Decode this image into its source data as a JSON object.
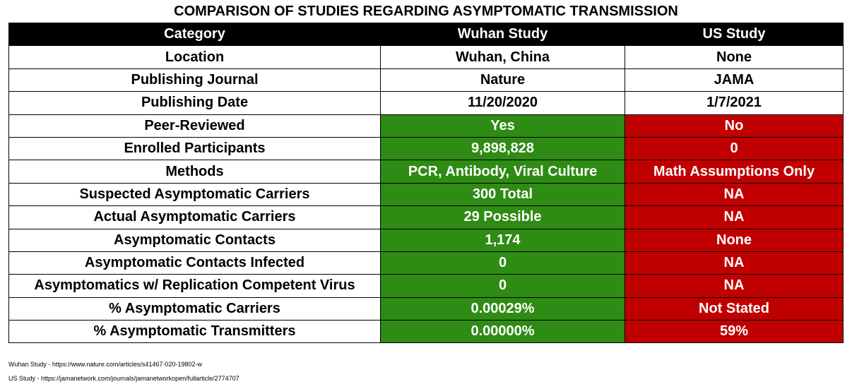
{
  "title": "COMPARISON OF STUDIES REGARDING ASYMPTOMATIC TRANSMISSION",
  "colors": {
    "good": "#2e8b13",
    "bad": "#c00000",
    "header_bg": "#000000"
  },
  "headers": [
    "Category",
    "Wuhan Study",
    "US Study"
  ],
  "rows": [
    {
      "category": "Location",
      "wuhan": "Wuhan, China",
      "us": "None",
      "highlight": false
    },
    {
      "category": "Publishing Journal",
      "wuhan": "Nature",
      "us": "JAMA",
      "highlight": false
    },
    {
      "category": "Publishing Date",
      "wuhan": "11/20/2020",
      "us": "1/7/2021",
      "highlight": false
    },
    {
      "category": "Peer-Reviewed",
      "wuhan": "Yes",
      "us": "No",
      "highlight": true
    },
    {
      "category": "Enrolled Participants",
      "wuhan": "9,898,828",
      "us": "0",
      "highlight": true
    },
    {
      "category": "Methods",
      "wuhan": "PCR, Antibody, Viral Culture",
      "us": "Math Assumptions Only",
      "highlight": true
    },
    {
      "category": "Suspected Asymptomatic Carriers",
      "wuhan": "300 Total",
      "us": "NA",
      "highlight": true
    },
    {
      "category": "Actual Asymptomatic Carriers",
      "wuhan": "29 Possible",
      "us": "NA",
      "highlight": true
    },
    {
      "category": "Asymptomatic Contacts",
      "wuhan": "1,174",
      "us": "None",
      "highlight": true
    },
    {
      "category": "Asymptomatic Contacts Infected",
      "wuhan": "0",
      "us": "NA",
      "highlight": true
    },
    {
      "category": "Asymptomatics w/ Replication Competent Virus",
      "wuhan": "0",
      "us": "NA",
      "highlight": true
    },
    {
      "category": "% Asymptomatic Carriers",
      "wuhan": "0.00029%",
      "us": "Not Stated",
      "highlight": true
    },
    {
      "category": "% Asymptomatic Transmitters",
      "wuhan": "0.00000%",
      "us": "59%",
      "highlight": true
    }
  ],
  "sources": [
    "Wuhan Study - https://www.nature.com/articles/s41467-020-19802-w",
    "US Study - https://jamanetwork.com/journals/jamanetworkopen/fullarticle/2774707"
  ]
}
